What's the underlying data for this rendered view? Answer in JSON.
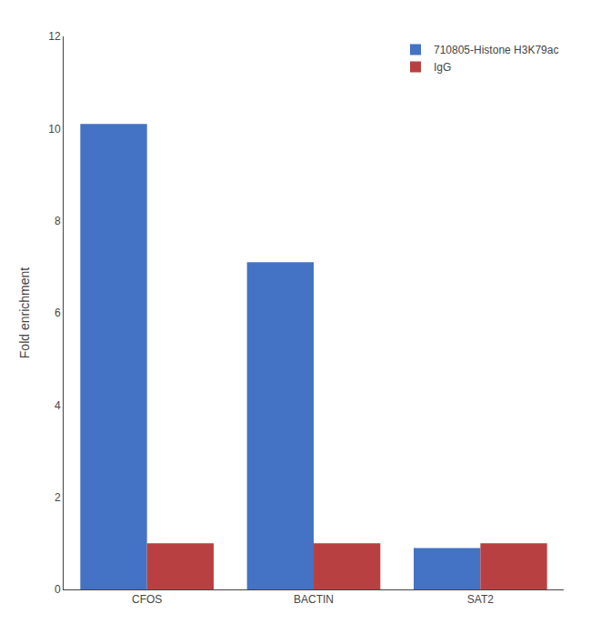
{
  "chart_data": {
    "type": "bar",
    "categories": [
      "CFOS",
      "BACTIN",
      "SAT2"
    ],
    "series": [
      {
        "name": "710805-Histone H3K79ac",
        "color": "#4472C4",
        "values": [
          10.1,
          7.1,
          0.9
        ]
      },
      {
        "name": "IgG",
        "color": "#B94040",
        "values": [
          1.0,
          1.0,
          1.0
        ]
      }
    ],
    "ylabel": "Fold enrichment",
    "ylim": [
      0,
      12
    ],
    "yticks": [
      0,
      2,
      4,
      6,
      8,
      10,
      12
    ],
    "grid": false,
    "legend": "upper right"
  }
}
